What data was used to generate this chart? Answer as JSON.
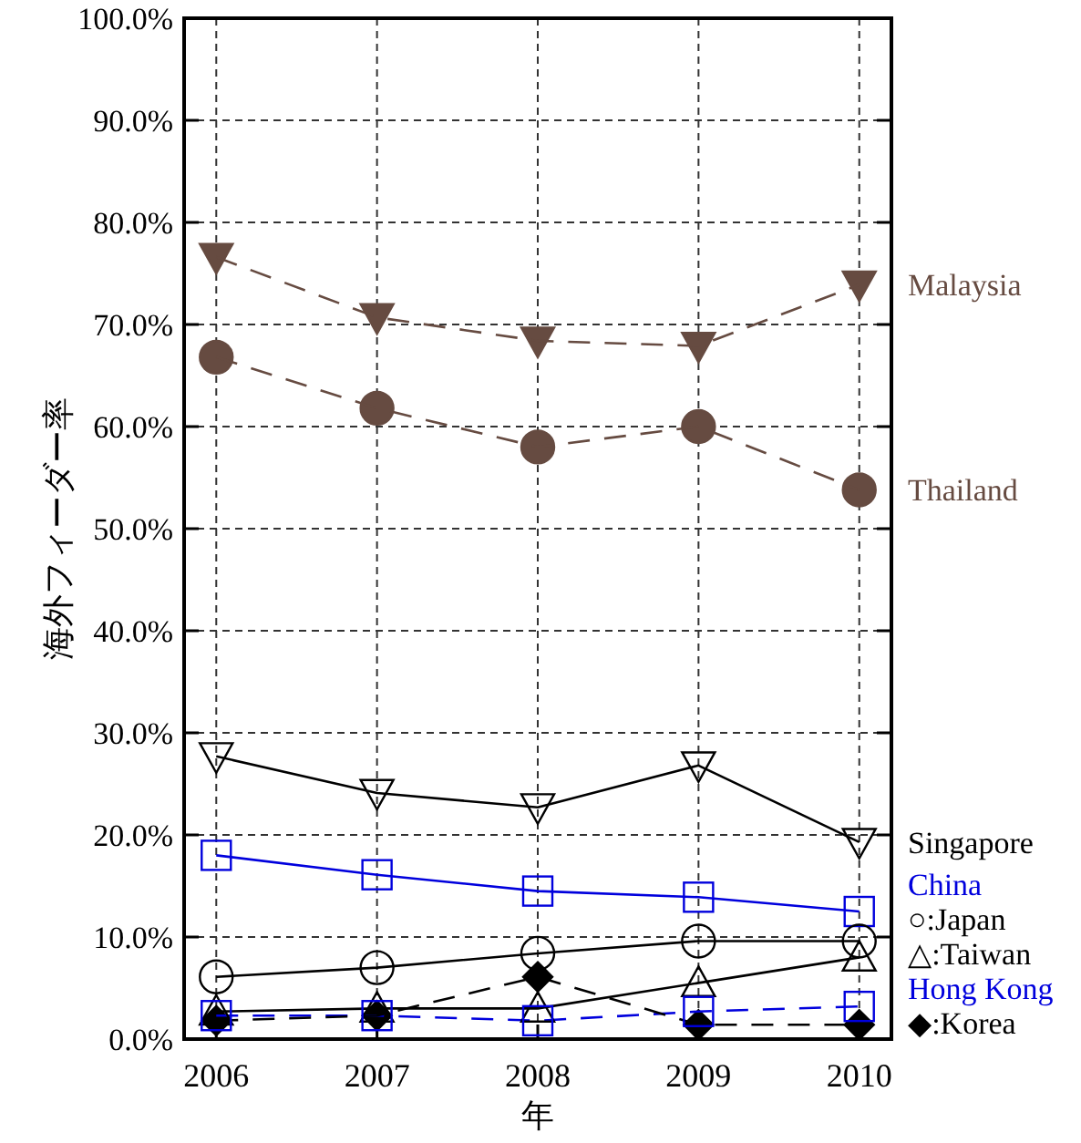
{
  "chart_data": {
    "type": "line",
    "xlabel": "年",
    "ylabel": "海外フィーダー率",
    "x": [
      2006,
      2007,
      2008,
      2009,
      2010
    ],
    "xlim": [
      2005.8,
      2010.2
    ],
    "xticks": [
      2006,
      2007,
      2008,
      2009,
      2010
    ],
    "ylim": [
      0,
      100
    ],
    "yticks": [
      {
        "value": 0,
        "label": "0.0%"
      },
      {
        "value": 10,
        "label": "10.0%"
      },
      {
        "value": 20,
        "label": "20.0%"
      },
      {
        "value": 30,
        "label": "30.0%"
      },
      {
        "value": 40,
        "label": "40.0%"
      },
      {
        "value": 50,
        "label": "50.0%"
      },
      {
        "value": 60,
        "label": "60.0%"
      },
      {
        "value": 70,
        "label": "70.0%"
      },
      {
        "value": 80,
        "label": "80.0%"
      },
      {
        "value": 90,
        "label": "90.0%"
      },
      {
        "value": 100,
        "label": "100.0%"
      }
    ],
    "grid": true,
    "legend": "right",
    "series": [
      {
        "name": "Malaysia",
        "color": "#664b41",
        "marker": "triangle-down-filled",
        "line_style": "dashed",
        "values": [
          76.6,
          70.7,
          68.4,
          67.9,
          73.9
        ]
      },
      {
        "name": "Thailand",
        "color": "#664b41",
        "marker": "circle-filled",
        "line_style": "dashed",
        "values": [
          66.8,
          61.8,
          58.0,
          60.0,
          53.8
        ]
      },
      {
        "name": "Singapore",
        "color": "#000000",
        "marker": "triangle-down",
        "line_style": "solid",
        "values": [
          27.7,
          24.1,
          22.7,
          26.8,
          19.3
        ]
      },
      {
        "name": "China",
        "color": "#0000dd",
        "marker": "square",
        "line_style": "solid",
        "values": [
          18.0,
          16.1,
          14.5,
          13.9,
          12.5
        ]
      },
      {
        "name": "○:Japan",
        "color": "#000000",
        "marker": "circle",
        "line_style": "solid",
        "values": [
          6.1,
          7.0,
          8.4,
          9.6,
          9.6
        ]
      },
      {
        "name": "△:Taiwan",
        "color": "#000000",
        "marker": "triangle",
        "line_style": "solid",
        "values": [
          2.7,
          3.0,
          3.0,
          5.5,
          8.0
        ]
      },
      {
        "name": "Hong Kong",
        "color": "#0000dd",
        "marker": "square",
        "line_style": "dashed",
        "values": [
          2.3,
          2.3,
          1.8,
          2.7,
          3.2
        ]
      },
      {
        "name": "◆:Korea",
        "color": "#000000",
        "marker": "diamond-filled",
        "line_style": "dashed",
        "values": [
          1.8,
          2.3,
          6.1,
          1.4,
          1.4
        ]
      }
    ]
  }
}
